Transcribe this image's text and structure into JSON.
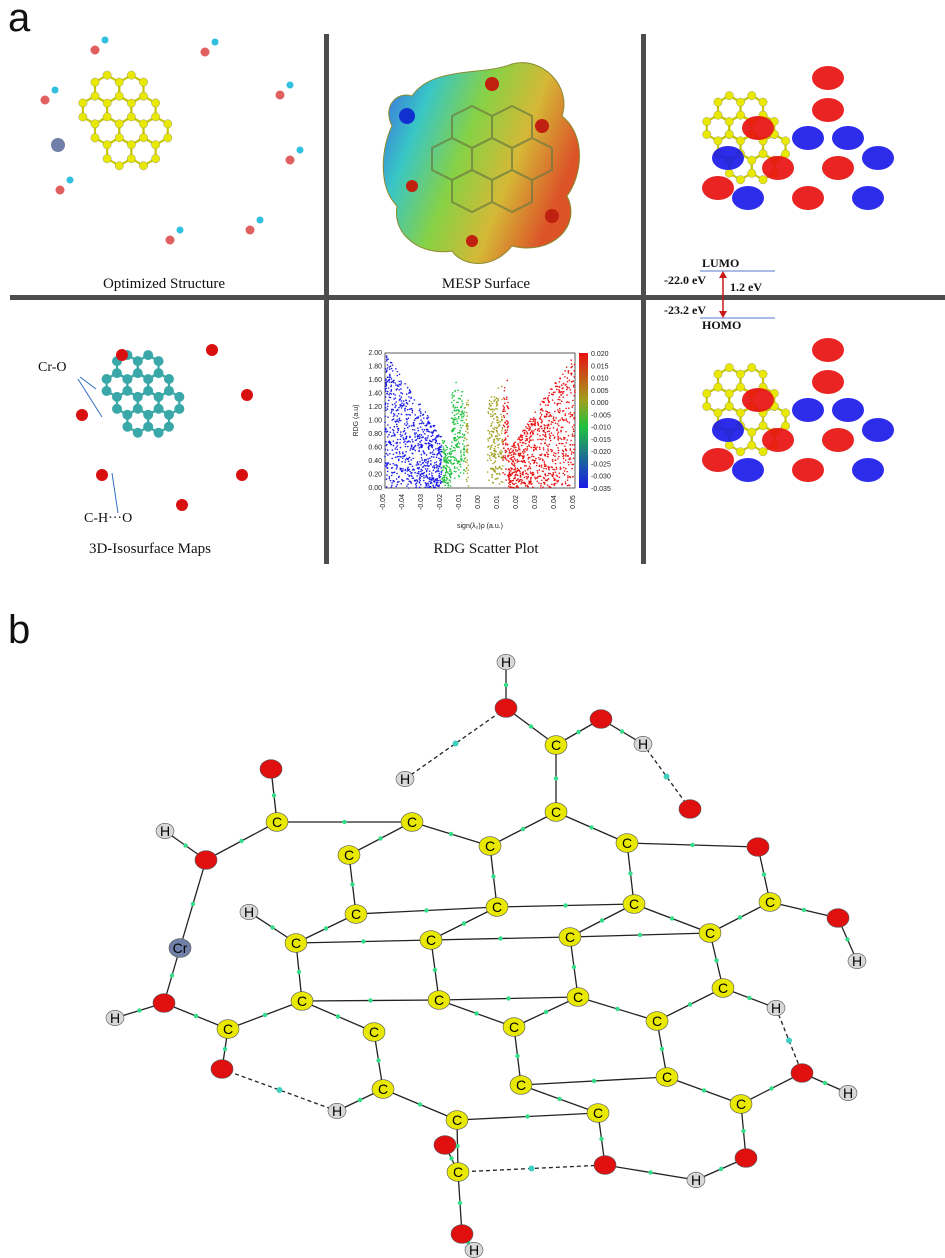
{
  "panel_a": {
    "letter": "a",
    "captions": {
      "optimized": "Optimized Structure",
      "mesp": "MESP Surface",
      "isosurface": "3D-Isosurface Maps",
      "rdg": "RDG Scatter Plot"
    },
    "orbitals": {
      "lumo_label": "LUMO",
      "homo_label": "HOMO",
      "lumo_energy": "-22.0 eV",
      "homo_energy": "-23.2 eV",
      "gap": "1.2 eV"
    },
    "annotations": {
      "cr_o": "Cr-O",
      "ch_o": "C-H···O"
    },
    "rdg_plot": {
      "ylabel": "RDG (a.u)",
      "xlabel": "sign(λ₂)ρ (a.u.)",
      "y_ticks": [
        "2.00",
        "1.80",
        "1.60",
        "1.40",
        "1.20",
        "1.00",
        "0.80",
        "0.60",
        "0.40",
        "0.20",
        "0.00"
      ],
      "x_ticks": [
        "-0.05",
        "-0.04",
        "-0.03",
        "-0.02",
        "-0.01",
        "0.00",
        "0.01",
        "0.02",
        "0.03",
        "0.04",
        "0.05"
      ],
      "colorbar_ticks": [
        "0.020",
        "0.015",
        "0.010",
        "0.005",
        "0.000",
        "-0.005",
        "-0.010",
        "-0.015",
        "-0.020",
        "-0.025",
        "-0.030",
        "-0.035"
      ]
    }
  },
  "panel_b": {
    "letter": "b"
  },
  "colors": {
    "carbon": "#e8e800",
    "oxygen": "#e01010",
    "hydrogen": "#d8d8d8",
    "chromium": "#7080a8",
    "bcp": "#33dd88",
    "lumo_pos": "#e81010",
    "lumo_neg": "#1a1ae8",
    "divider": "#4d4d4d",
    "arrow": "#c81818"
  }
}
